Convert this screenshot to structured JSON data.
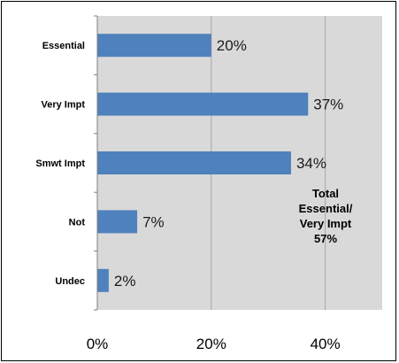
{
  "chart_data": {
    "type": "bar",
    "orientation": "horizontal",
    "categories": [
      "Essential",
      "Very Impt",
      "Smwt Impt",
      "Not",
      "Undec"
    ],
    "values": [
      20,
      37,
      34,
      7,
      2
    ],
    "data_labels": [
      "20%",
      "37%",
      "34%",
      "7%",
      "2%"
    ],
    "xlim": [
      0,
      50
    ],
    "xticks": [
      0,
      20,
      40
    ],
    "xtick_labels": [
      "0%",
      "20%",
      "40%"
    ],
    "grid": true,
    "legend": "none",
    "colors": {
      "bar": "#4f81bd",
      "plot_background": "#d9d9d9",
      "gridline": "#a6a6a6"
    },
    "annotation": [
      "Total",
      "Essential/",
      "Very Impt",
      "57%"
    ]
  }
}
